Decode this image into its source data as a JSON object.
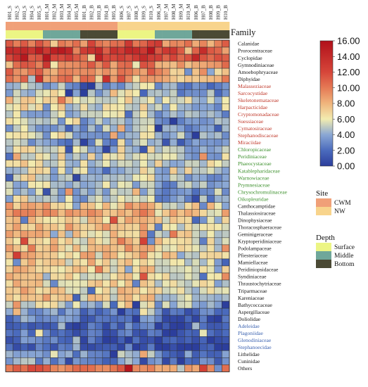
{
  "chart_data": {
    "type": "heatmap",
    "columns": [
      "H01_S",
      "H02_S",
      "H03_S",
      "H04_S",
      "H05_S",
      "H01_M",
      "H02_M",
      "H03_M",
      "H04_M",
      "H05_M",
      "H01_B",
      "H02_B",
      "H03_B",
      "H04_B",
      "H05_B",
      "H06_S",
      "H07_S",
      "H08_S",
      "H09_S",
      "H10_S",
      "H06_M",
      "H07_M",
      "H08_M",
      "H09_M",
      "H10_M",
      "H06_B",
      "H07_B",
      "H08_B",
      "H09_B",
      "H10_B"
    ],
    "rows": [
      {
        "name": "Calanidae",
        "group": "black"
      },
      {
        "name": "Prorocentraceae",
        "group": "black"
      },
      {
        "name": "Cyclopidae",
        "group": "black"
      },
      {
        "name": "Gymnodiniaceae",
        "group": "black"
      },
      {
        "name": "Amoebophryaceae",
        "group": "black"
      },
      {
        "name": "Diphyidae",
        "group": "black"
      },
      {
        "name": "Malasseziaceae",
        "group": "red"
      },
      {
        "name": "Sarcocystidae",
        "group": "red"
      },
      {
        "name": "Skeletonemataceae",
        "group": "red"
      },
      {
        "name": "Harpacticidae",
        "group": "red"
      },
      {
        "name": "Cryptomonadaceae",
        "group": "red"
      },
      {
        "name": "Suessiaceae",
        "group": "red"
      },
      {
        "name": "Cymatosiraceae",
        "group": "red"
      },
      {
        "name": "Stephanodiscaceae",
        "group": "red"
      },
      {
        "name": "Miraciidae",
        "group": "red"
      },
      {
        "name": "Chloropicaceae",
        "group": "green"
      },
      {
        "name": "Peridiniaceae",
        "group": "green"
      },
      {
        "name": "Phaeocystaceae",
        "group": "green"
      },
      {
        "name": "Katablepharidaceae",
        "group": "green"
      },
      {
        "name": "Warnowiaceae",
        "group": "green"
      },
      {
        "name": "Prymnesiaceae",
        "group": "green"
      },
      {
        "name": "Chrysochromulinaceae",
        "group": "green"
      },
      {
        "name": "Oikopleuridae",
        "group": "green"
      },
      {
        "name": "Canthocamptidae",
        "group": "black"
      },
      {
        "name": "Thalassiosiraceae",
        "group": "black"
      },
      {
        "name": "Dinophysiaceae",
        "group": "black"
      },
      {
        "name": "Thoracosphaeraceae",
        "group": "black"
      },
      {
        "name": "Geminigeraceae",
        "group": "black"
      },
      {
        "name": "Kryptoperidiniaceae",
        "group": "black"
      },
      {
        "name": "Podolampaceae",
        "group": "black"
      },
      {
        "name": "Pfiesteriaceae",
        "group": "black"
      },
      {
        "name": "Mamiellaceae",
        "group": "black"
      },
      {
        "name": "Peridiniopsidaceae",
        "group": "black"
      },
      {
        "name": "Syndiniaceae",
        "group": "black"
      },
      {
        "name": "Thraustochytriaceae",
        "group": "black"
      },
      {
        "name": "Triparmaceae",
        "group": "black"
      },
      {
        "name": "Kareniaceae",
        "group": "black"
      },
      {
        "name": "Bathycoccaceae",
        "group": "black"
      },
      {
        "name": "Aspergillaceae",
        "group": "black"
      },
      {
        "name": "Doliolidae",
        "group": "black"
      },
      {
        "name": "Adeleidae",
        "group": "blue"
      },
      {
        "name": "Plagoniidae",
        "group": "blue"
      },
      {
        "name": "Glenodiniaceae",
        "group": "blue"
      },
      {
        "name": "Stephanoecidae",
        "group": "blue"
      },
      {
        "name": "Lithelidae",
        "group": "black"
      },
      {
        "name": "Cuninidae",
        "group": "black"
      },
      {
        "name": "Others",
        "group": "black"
      }
    ],
    "row_base_values": [
      10.5,
      13.5,
      12.0,
      10.0,
      9.0,
      9.5,
      4.0,
      4.5,
      6.0,
      5.5,
      4.5,
      4.5,
      4.0,
      4.5,
      3.5,
      5.0,
      5.5,
      5.5,
      5.0,
      5.0,
      4.5,
      4.5,
      4.5,
      7.5,
      8.0,
      7.0,
      7.5,
      7.0,
      7.0,
      7.0,
      7.0,
      6.5,
      6.5,
      6.5,
      6.5,
      6.5,
      6.5,
      5.0,
      3.0,
      2.5,
      1.5,
      1.5,
      1.5,
      1.0,
      3.5,
      3.0,
      10.0
    ],
    "column_offsets": [
      0.8,
      0.6,
      0.9,
      0.5,
      0.7,
      0.3,
      0.2,
      0.4,
      0.1,
      0.0,
      -0.3,
      0.2,
      -0.1,
      0.1,
      -0.2,
      0.6,
      1.0,
      0.4,
      0.8,
      0.9,
      -0.6,
      -1.2,
      -0.8,
      -1.4,
      -0.9,
      -1.0,
      -0.7,
      -1.1,
      -1.3,
      -0.8
    ],
    "color_scale": {
      "min": 0.0,
      "max": 16.0,
      "stops": [
        [
          0,
          "#2c3e9c"
        ],
        [
          2,
          "#4b6bbd"
        ],
        [
          4,
          "#8aa7d4"
        ],
        [
          6,
          "#f2ecb0"
        ],
        [
          8,
          "#f0b57d"
        ],
        [
          10,
          "#e57a55"
        ],
        [
          12,
          "#d6463a"
        ],
        [
          16,
          "#b1101a"
        ]
      ],
      "ticks": [
        16.0,
        14.0,
        12.0,
        10.0,
        8.0,
        6.0,
        4.0,
        2.0,
        0.0
      ]
    },
    "annotations": {
      "site": [
        "CWM",
        "CWM",
        "CWM",
        "CWM",
        "CWM",
        "CWM",
        "CWM",
        "CWM",
        "CWM",
        "CWM",
        "CWM",
        "CWM",
        "CWM",
        "CWM",
        "CWM",
        "NW",
        "NW",
        "NW",
        "NW",
        "NW",
        "NW",
        "NW",
        "NW",
        "NW",
        "NW",
        "NW",
        "NW",
        "NW",
        "NW",
        "NW"
      ],
      "depth": [
        "Surface",
        "Surface",
        "Surface",
        "Surface",
        "Surface",
        "Middle",
        "Middle",
        "Middle",
        "Middle",
        "Middle",
        "Bottom",
        "Bottom",
        "Bottom",
        "Bottom",
        "Bottom",
        "Surface",
        "Surface",
        "Surface",
        "Surface",
        "Surface",
        "Middle",
        "Middle",
        "Middle",
        "Middle",
        "Middle",
        "Bottom",
        "Bottom",
        "Bottom",
        "Bottom",
        "Bottom"
      ]
    }
  },
  "labels": {
    "family_title": "Family",
    "site_legend": {
      "title": "Site",
      "entries": [
        {
          "label": "CWM",
          "color": "#f0a078"
        },
        {
          "label": "NW",
          "color": "#f8d48c"
        }
      ]
    },
    "depth_legend": {
      "title": "Depth",
      "entries": [
        {
          "label": "Surface",
          "color": "#ecf584"
        },
        {
          "label": "Middle",
          "color": "#6fa79a"
        },
        {
          "label": "Bottom",
          "color": "#4b4a35"
        }
      ]
    }
  },
  "colors": {
    "label_black": "#111111",
    "label_red": "#c0392b",
    "label_green": "#3a8f2a",
    "label_blue": "#3b62b0"
  }
}
